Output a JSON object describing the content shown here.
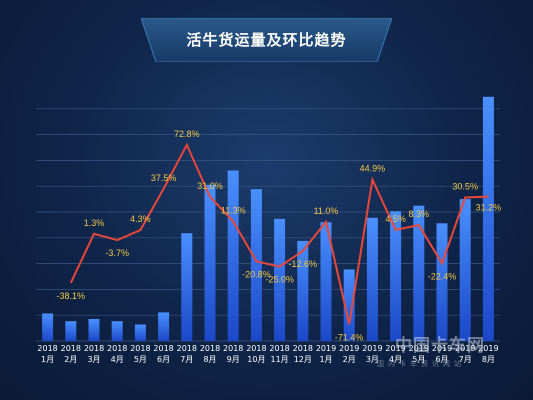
{
  "colors": {
    "bar_top": "#4a90ff",
    "bar_bottom": "#1c48c8",
    "line": "#e8483a",
    "label": "#f5c842",
    "axis_text": "#ffffff",
    "grid": "#3a5682"
  },
  "watermark": {
    "top": "中国卡车网",
    "bottom": "国内卡车资讯网站"
  },
  "chart_data": {
    "type": "bar",
    "title": "活牛货运量及环比趋势",
    "xlabel": "",
    "ylabel": "",
    "grid": true,
    "categories": [
      "2018\n1月",
      "2018\n2月",
      "2018\n3月",
      "2018\n4月",
      "2018\n5月",
      "2018\n6月",
      "2018\n7月",
      "2018\n8月",
      "2018\n9月",
      "2018\n10月",
      "2018\n11月",
      "2018\n12月",
      "2019\n1月",
      "2019\n2月",
      "2019\n3月",
      "2019\n4月",
      "2019\n5月",
      "2019\n6月",
      "2019\n7月",
      "2019\n8月"
    ],
    "bar_values": [
      25,
      18,
      20,
      18,
      15,
      26,
      98,
      142,
      155,
      138,
      111,
      91,
      108,
      65,
      112,
      118,
      123,
      107,
      129,
      222
    ],
    "bar_max": 230,
    "line_series": {
      "values": [
        null,
        -38.1,
        1.3,
        -3.7,
        4.3,
        37.5,
        72.8,
        31.0,
        11.3,
        -20.8,
        -25.0,
        -12.6,
        11.0,
        -71.4,
        44.9,
        4.5,
        8.3,
        -22.4,
        30.5,
        31.2
      ],
      "labels": [
        null,
        "-38.1%",
        "1.3%",
        "-3.7%",
        "4.3%",
        "37.5%",
        "72.8%",
        "31.0%",
        "11.3%",
        "-20.8%",
        "-25.0%",
        "-12.6%",
        "11.0%",
        "-71.4%",
        "44.9%",
        "4.5%",
        "8.3%",
        "-22.4%",
        "30.5%",
        "31.2%"
      ],
      "ylim": [
        -80,
        100
      ]
    }
  }
}
